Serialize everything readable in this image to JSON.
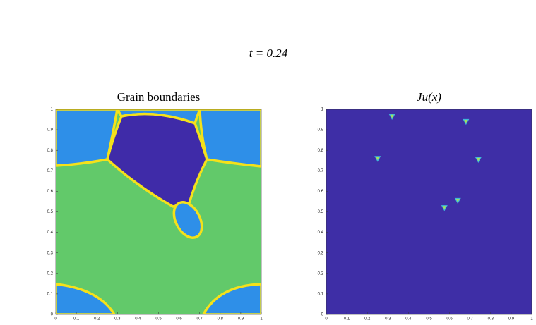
{
  "figure_title": "t = 0.24",
  "chart_data": [
    {
      "type": "image",
      "title": "Grain boundaries",
      "xlim": [
        0,
        1
      ],
      "ylim": [
        0,
        1
      ],
      "xticks": [
        0,
        0.1,
        0.2,
        0.3,
        0.4,
        0.5,
        0.6,
        0.7,
        0.8,
        0.9,
        1
      ],
      "yticks": [
        0,
        0.1,
        0.2,
        0.3,
        0.4,
        0.5,
        0.6,
        0.7,
        0.8,
        0.9,
        1
      ]
    },
    {
      "type": "scatter",
      "title": "Ju(x)",
      "x": [
        0.32,
        0.68,
        0.25,
        0.74,
        0.64,
        0.575
      ],
      "y": [
        0.965,
        0.94,
        0.76,
        0.755,
        0.555,
        0.52
      ],
      "color": "#a6e05c",
      "background": "#3e2ea6",
      "xlim": [
        0,
        1
      ],
      "ylim": [
        0,
        1
      ],
      "xticks": [
        0,
        0.1,
        0.2,
        0.3,
        0.4,
        0.5,
        0.6,
        0.7,
        0.8,
        0.9,
        1
      ],
      "yticks": [
        0,
        0.1,
        0.2,
        0.3,
        0.4,
        0.5,
        0.6,
        0.7,
        0.8,
        0.9,
        1
      ]
    }
  ]
}
